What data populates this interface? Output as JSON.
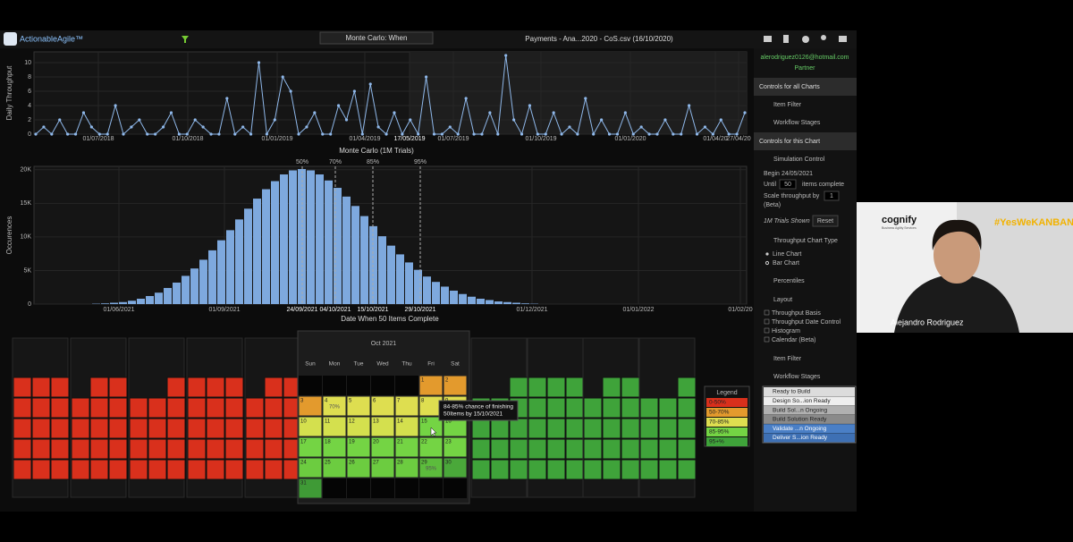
{
  "toolbar": {
    "logo": "ActionableAgile™",
    "view": "Monte Carlo: When",
    "file": "Payments - Ana...2020 - CoS.csv (16/10/2020)"
  },
  "throughput": {
    "y_label": "Daily Throughput",
    "ylim": [
      0,
      11.5
    ],
    "yticks": [
      0,
      2,
      4,
      6,
      8,
      10
    ],
    "color": "#8fb8ea",
    "x_labels": [
      "01/07/2018",
      "01/10/2018",
      "01/01/2019",
      "01/04/2019",
      "17/05/2019",
      "01/07/2019",
      "01/10/2019",
      "01/01/2020",
      "01/04/20",
      "27/04/20"
    ],
    "values": [
      0,
      1,
      0,
      2,
      0,
      0,
      3,
      1,
      0,
      0,
      4,
      0,
      1,
      2,
      0,
      0,
      1,
      3,
      0,
      0,
      2,
      1,
      0,
      0,
      5,
      0,
      1,
      0,
      10,
      0,
      2,
      8,
      6,
      0,
      1,
      3,
      0,
      0,
      4,
      2,
      6,
      0,
      7,
      1,
      0,
      3,
      0,
      2,
      0,
      8,
      0,
      0,
      1,
      0,
      5,
      0,
      0,
      3,
      0,
      11,
      2,
      0,
      4,
      0,
      0,
      3,
      0,
      1,
      0,
      5,
      0,
      2,
      0,
      0,
      3,
      0,
      1,
      0,
      0,
      2,
      0,
      0,
      4,
      0,
      1,
      0,
      2,
      0,
      0,
      3
    ]
  },
  "histogram": {
    "title": "Monte Carlo (1M Trials)",
    "y_label": "Occurences",
    "x_label": "Date When 50 Items Complete",
    "ylim": [
      0,
      20500
    ],
    "yticks": [
      0,
      {
        "value": 5000,
        "label": "5K"
      },
      {
        "value": 10000,
        "label": "10K"
      },
      {
        "value": 15000,
        "label": "15K"
      },
      {
        "value": 20000,
        "label": "20K"
      }
    ],
    "x_labels": [
      "01/06/2021",
      "01/09/2021",
      "01/12/2021",
      "01/01/2022",
      "01/02/20"
    ],
    "percentiles": [
      {
        "label": "50%",
        "date": "24/09/2021"
      },
      {
        "label": "70%",
        "date": "04/10/2021"
      },
      {
        "label": "85%",
        "date": "15/10/2021"
      },
      {
        "label": "95%",
        "date": "29/10/2021"
      }
    ],
    "color": "#7ea9de",
    "values": [
      50,
      100,
      200,
      300,
      500,
      800,
      1200,
      1700,
      2400,
      3200,
      4200,
      5300,
      6600,
      8000,
      9500,
      11000,
      12600,
      14200,
      15700,
      17100,
      18300,
      19300,
      19900,
      20100,
      19900,
      19300,
      18400,
      17300,
      16000,
      14600,
      13100,
      11600,
      10100,
      8700,
      7400,
      6200,
      5100,
      4100,
      3300,
      2600,
      2000,
      1500,
      1100,
      800,
      600,
      400,
      300,
      200,
      100,
      50
    ]
  },
  "calendar": {
    "title": "Oct 2021",
    "weekdays": [
      "Sun",
      "Mon",
      "Tue",
      "Wed",
      "Thu",
      "Fri",
      "Sat"
    ],
    "days": [
      {
        "day": 1,
        "color": "#e39a2d"
      },
      {
        "day": 2,
        "color": "#e39a2d"
      },
      {
        "day": 3,
        "color": "#e39a2d"
      },
      {
        "day": 4,
        "color": "#dede50",
        "label": "70%"
      },
      {
        "day": 5,
        "color": "#dede50"
      },
      {
        "day": 6,
        "color": "#dede50"
      },
      {
        "day": 7,
        "color": "#dede50"
      },
      {
        "day": 8,
        "color": "#dede50"
      },
      {
        "day": 9,
        "color": "#dede50"
      },
      {
        "day": 10,
        "color": "#d4e04e"
      },
      {
        "day": 11,
        "color": "#d4e04e"
      },
      {
        "day": 12,
        "color": "#d4e04e"
      },
      {
        "day": 13,
        "color": "#d4e04e"
      },
      {
        "day": 14,
        "color": "#d4e04e"
      },
      {
        "day": 15,
        "color": "#74d444"
      },
      {
        "day": 16,
        "color": "#74d444"
      },
      {
        "day": 17,
        "color": "#74d444"
      },
      {
        "day": 18,
        "color": "#74d444"
      },
      {
        "day": 19,
        "color": "#74d444"
      },
      {
        "day": 20,
        "color": "#74d444"
      },
      {
        "day": 21,
        "color": "#74d444"
      },
      {
        "day": 22,
        "color": "#74d444"
      },
      {
        "day": 23,
        "color": "#74d444"
      },
      {
        "day": 24,
        "color": "#6ccc40"
      },
      {
        "day": 25,
        "color": "#6ccc40"
      },
      {
        "day": 26,
        "color": "#6ccc40"
      },
      {
        "day": 27,
        "color": "#6ccc40"
      },
      {
        "day": 28,
        "color": "#6ccc40"
      },
      {
        "day": 29,
        "color": "#5cbc3c",
        "label": "95%"
      },
      {
        "day": 30,
        "color": "#4aa83a"
      },
      {
        "day": 31,
        "color": "#3f9a36"
      }
    ],
    "tooltip": [
      "84-85% chance of finishing",
      "50Items by 15/10/2021"
    ],
    "other_months": [
      {
        "color": "#d9301c"
      },
      {
        "color": "#d9301c"
      },
      {
        "color": "#d9301c"
      },
      {
        "color": "#d9301c"
      },
      {
        "color": "#d9301c"
      },
      {
        "color": "#3fa33a"
      },
      {
        "color": "#3fa33a"
      },
      {
        "color": "#3fa33a"
      },
      {
        "color": "#3fa33a"
      }
    ],
    "legend": {
      "title": "Legend",
      "items": [
        {
          "label": "0-50%",
          "color": "#d9301c"
        },
        {
          "label": "50-70%",
          "color": "#e39a2d"
        },
        {
          "label": "70-85%",
          "color": "#dede50"
        },
        {
          "label": "85-95%",
          "color": "#74d444"
        },
        {
          "label": "95+%",
          "color": "#3fa33a"
        }
      ]
    }
  },
  "sidebar": {
    "email": "alerodriguez0126@hotmail.com",
    "role": "Partner",
    "all_charts": "Controls for all Charts",
    "item_filter": "Item Filter",
    "workflow_stages": "Workflow Stages",
    "this_chart": "Controls for this Chart",
    "simulation_control": "Simulation Control",
    "begin": "Begin",
    "begin_date": "24/05/2021",
    "until": "Until",
    "until_value": "50",
    "items_complete": "items complete",
    "scale": "Scale throughput by",
    "scale_value": "1",
    "beta": "(Beta)",
    "trials": "1M Trials Shown",
    "reset": "Reset",
    "chart_type": "Throughput Chart Type",
    "line_chart": "Line Chart",
    "bar_chart": "Bar Chart",
    "percentiles": "Percentiles",
    "layout": "Layout",
    "layout_items": [
      "Throughput Basis",
      "Throughput Date Control",
      "Histogram",
      "Calendar (Beta)"
    ],
    "item_filter_2": "Item Filter",
    "workflow_stages_2": "Workflow Stages",
    "stages": [
      {
        "label": "Ready to Build",
        "color": "#dcdcdc"
      },
      {
        "label": "Design So...ion Ready",
        "color": "#eeeeee"
      },
      {
        "label": "Build Sol...n Ongoing",
        "color": "#b0b0b0"
      },
      {
        "label": "Build Solution Ready",
        "color": "#8a8a8a"
      },
      {
        "label": "Validate ...n Ongoing",
        "color": "#4a7fc6"
      },
      {
        "label": "Deliver S...ion Ready",
        "color": "#3e70b4"
      }
    ]
  },
  "video": {
    "brand": "cognify",
    "brand_sub": "Business Agility Services",
    "hashtag": "#YesWeKANBAN",
    "speaker": "Alejandro Rodriguez"
  }
}
